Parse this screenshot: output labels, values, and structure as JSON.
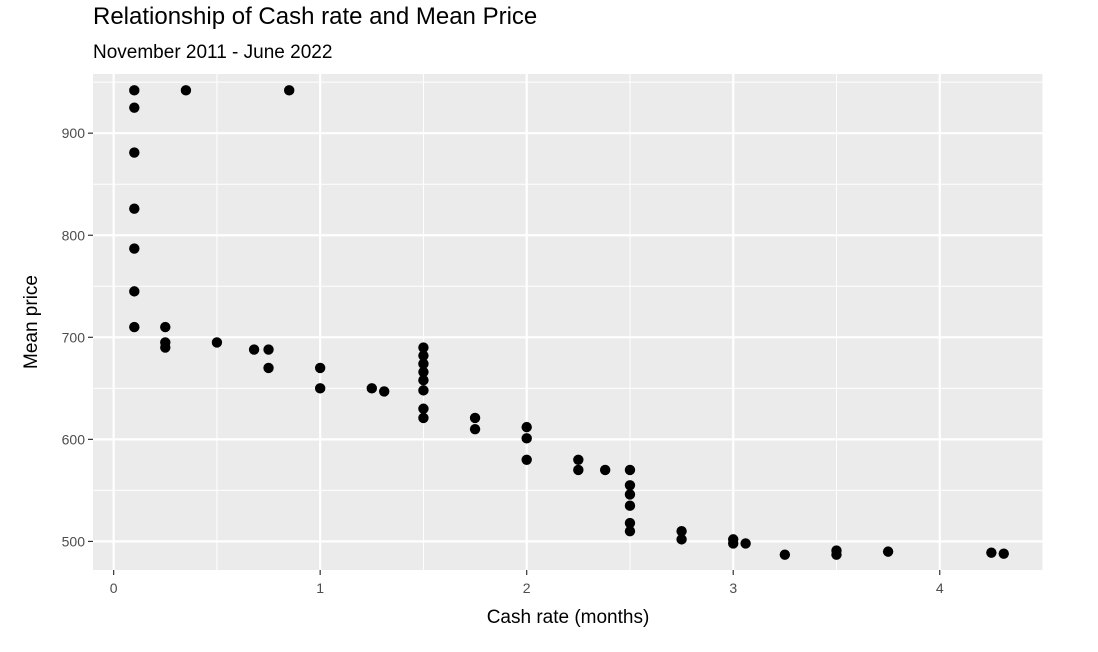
{
  "chart_data": {
    "type": "scatter",
    "title": "Relationship of Cash rate and Mean Price",
    "subtitle": "November 2011 - June 2022",
    "xlabel": "Cash rate (months)",
    "ylabel": "Mean price",
    "xlim": [
      -0.1,
      4.5
    ],
    "ylim": [
      472,
      958
    ],
    "xticks": [
      0,
      1,
      2,
      3,
      4
    ],
    "yticks": [
      500,
      600,
      700,
      800,
      900
    ],
    "grid": true,
    "background": "#ebebeb",
    "gridline_color": "#ffffff",
    "point_color": "#000000",
    "points": [
      {
        "x": 0.1,
        "y": 942
      },
      {
        "x": 0.1,
        "y": 925
      },
      {
        "x": 0.1,
        "y": 881
      },
      {
        "x": 0.1,
        "y": 826
      },
      {
        "x": 0.1,
        "y": 787
      },
      {
        "x": 0.1,
        "y": 745
      },
      {
        "x": 0.1,
        "y": 710
      },
      {
        "x": 0.35,
        "y": 942
      },
      {
        "x": 0.85,
        "y": 942
      },
      {
        "x": 0.25,
        "y": 710
      },
      {
        "x": 0.25,
        "y": 695
      },
      {
        "x": 0.25,
        "y": 690
      },
      {
        "x": 0.5,
        "y": 695
      },
      {
        "x": 0.68,
        "y": 688
      },
      {
        "x": 0.75,
        "y": 688
      },
      {
        "x": 0.75,
        "y": 670
      },
      {
        "x": 1.0,
        "y": 670
      },
      {
        "x": 1.0,
        "y": 650
      },
      {
        "x": 1.25,
        "y": 650
      },
      {
        "x": 1.31,
        "y": 647
      },
      {
        "x": 1.5,
        "y": 690
      },
      {
        "x": 1.5,
        "y": 682
      },
      {
        "x": 1.5,
        "y": 674
      },
      {
        "x": 1.5,
        "y": 666
      },
      {
        "x": 1.5,
        "y": 658
      },
      {
        "x": 1.5,
        "y": 648
      },
      {
        "x": 1.5,
        "y": 630
      },
      {
        "x": 1.5,
        "y": 621
      },
      {
        "x": 1.75,
        "y": 621
      },
      {
        "x": 1.75,
        "y": 610
      },
      {
        "x": 2.0,
        "y": 612
      },
      {
        "x": 2.0,
        "y": 601
      },
      {
        "x": 2.0,
        "y": 580
      },
      {
        "x": 2.25,
        "y": 580
      },
      {
        "x": 2.25,
        "y": 570
      },
      {
        "x": 2.38,
        "y": 570
      },
      {
        "x": 2.5,
        "y": 570
      },
      {
        "x": 2.5,
        "y": 555
      },
      {
        "x": 2.5,
        "y": 546
      },
      {
        "x": 2.5,
        "y": 535
      },
      {
        "x": 2.5,
        "y": 518
      },
      {
        "x": 2.5,
        "y": 510
      },
      {
        "x": 2.75,
        "y": 510
      },
      {
        "x": 2.75,
        "y": 502
      },
      {
        "x": 3.0,
        "y": 502
      },
      {
        "x": 3.0,
        "y": 498
      },
      {
        "x": 3.06,
        "y": 498
      },
      {
        "x": 3.25,
        "y": 487
      },
      {
        "x": 3.5,
        "y": 491
      },
      {
        "x": 3.5,
        "y": 487
      },
      {
        "x": 3.75,
        "y": 490
      },
      {
        "x": 4.25,
        "y": 489
      },
      {
        "x": 4.31,
        "y": 488
      }
    ]
  }
}
